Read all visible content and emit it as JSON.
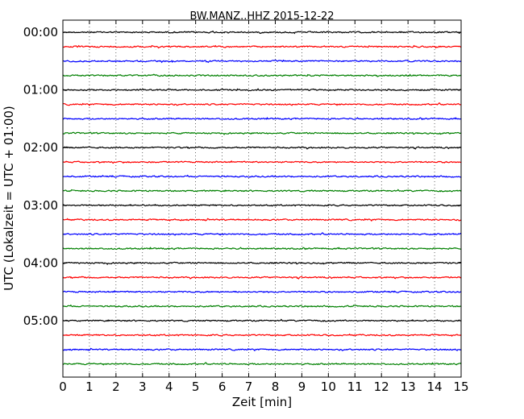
{
  "chart_data": {
    "type": "line",
    "title": "BW.MANZ..HHZ 2015-12-22",
    "xlabel": "Zeit  [min]",
    "ylabel": "UTC (Lokalzeit = UTC + 01:00)",
    "xlim": [
      0,
      15
    ],
    "x_ticks": [
      0,
      1,
      2,
      3,
      4,
      5,
      6,
      7,
      8,
      9,
      10,
      11,
      12,
      13,
      14,
      15
    ],
    "y_tick_labels": [
      "00:00",
      "01:00",
      "02:00",
      "03:00",
      "04:00",
      "05:00"
    ],
    "grid": "vertical dotted at each minute",
    "trace_interval_minutes": 15,
    "trace_start_times": [
      "00:00",
      "00:15",
      "00:30",
      "00:45",
      "01:00",
      "01:15",
      "01:30",
      "01:45",
      "02:00",
      "02:15",
      "02:30",
      "02:45",
      "03:00",
      "03:15",
      "03:30",
      "03:45",
      "04:00",
      "04:15",
      "04:30",
      "04:45",
      "05:00",
      "05:15",
      "05:30",
      "05:45"
    ],
    "trace_color_cycle": [
      "#000000",
      "#ff0000",
      "#0000ff",
      "#008000"
    ],
    "series_description": "24 seismogram traces, each 15 minutes long, low-amplitude noise around a baseline"
  }
}
